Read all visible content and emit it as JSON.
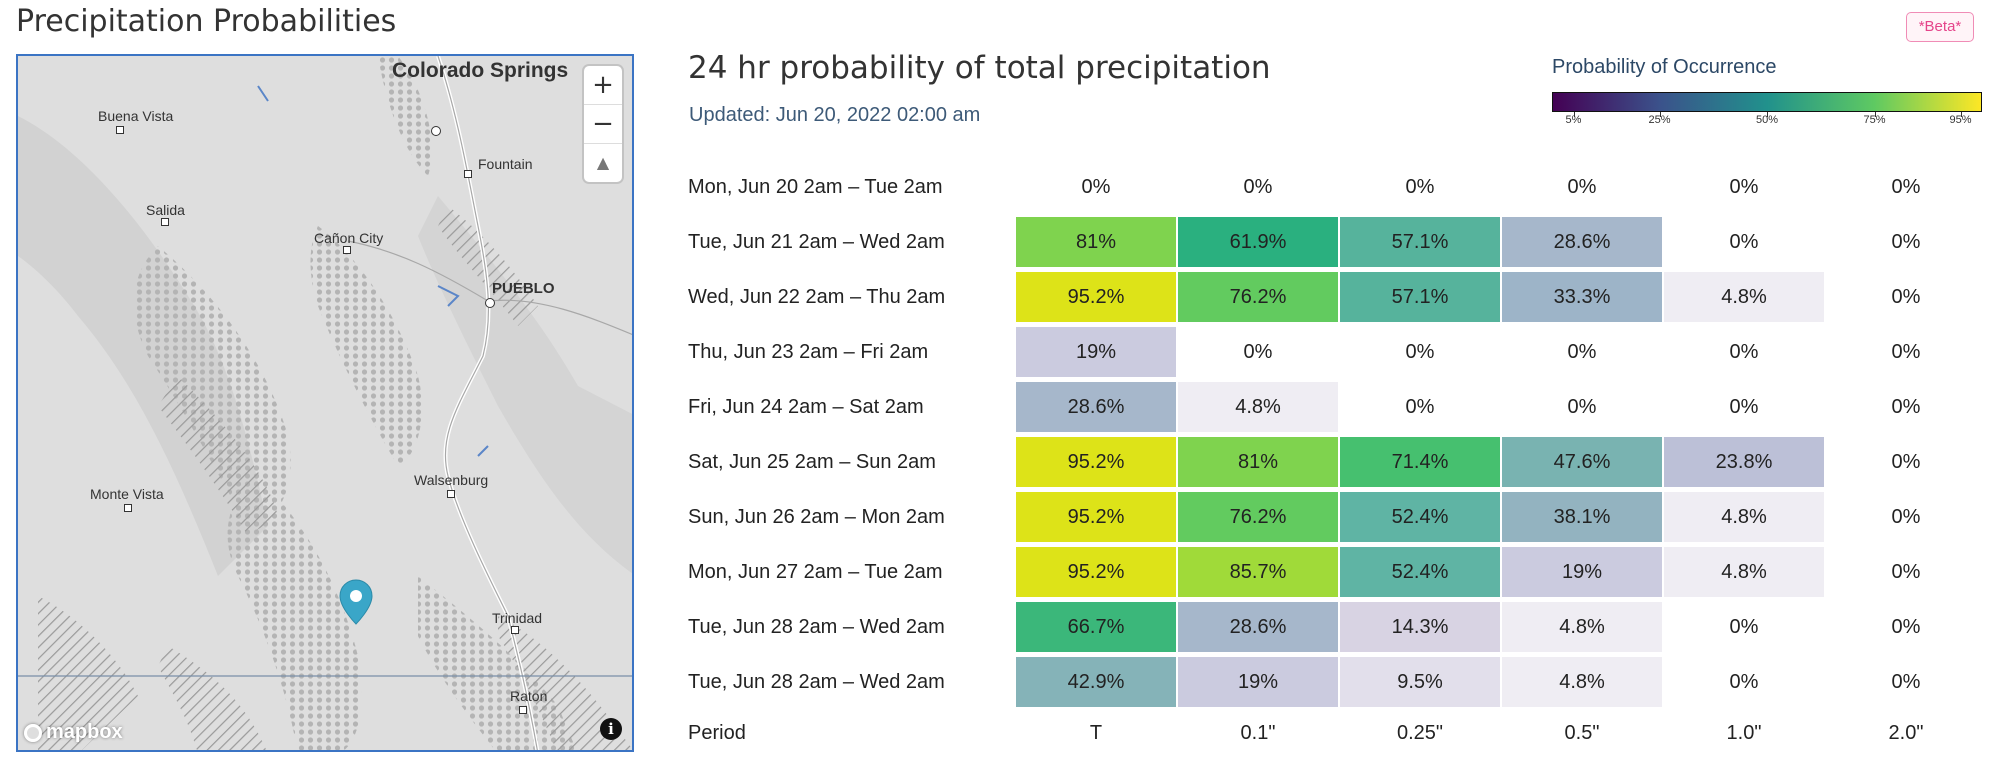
{
  "header": {
    "title": "Precipitation Probabilities",
    "badge": "*Beta*"
  },
  "map": {
    "labels": {
      "colorado_springs": "Colorado Springs",
      "buena_vista": "Buena Vista",
      "fountain": "Fountain",
      "salida": "Salida",
      "canon_city": "Cañon City",
      "pueblo": "PUEBLO",
      "monte_vista": "Monte Vista",
      "walsenburg": "Walsenburg",
      "trinidad": "Trinidad",
      "raton": "Raton"
    },
    "zoom_in": "+",
    "zoom_out": "−",
    "compass": "▲",
    "attribution": "mapbox",
    "info": "i",
    "pin_icon": "map-pin-icon",
    "pin_color": "#3aa6c8"
  },
  "panel": {
    "title": "24 hr probability of total precipitation",
    "updated": "Updated: Jun 20, 2022 02:00 am"
  },
  "legend": {
    "title": "Probability of Occurrence",
    "ticks": [
      "5%",
      "25%",
      "50%",
      "75%",
      "95%"
    ]
  },
  "table": {
    "columns": [
      "Period",
      "T",
      "0.1\"",
      "0.25\"",
      "0.5\"",
      "1.0\"",
      "2.0\""
    ],
    "rows": [
      {
        "period": "Mon, Jun 20 2am – Tue 2am",
        "values": [
          "0%",
          "0%",
          "0%",
          "0%",
          "0%",
          "0%"
        ],
        "colors": [
          "",
          "",
          "",
          "",
          "",
          ""
        ]
      },
      {
        "period": "Tue, Jun 21 2am – Wed 2am",
        "values": [
          "81%",
          "61.9%",
          "57.1%",
          "28.6%",
          "0%",
          "0%"
        ],
        "colors": [
          "#7fd34e",
          "#2ab07f",
          "#56b39c",
          "#a6b7cb",
          "",
          ""
        ]
      },
      {
        "period": "Wed, Jun 22 2am – Thu 2am",
        "values": [
          "95.2%",
          "76.2%",
          "57.1%",
          "33.3%",
          "4.8%",
          "0%"
        ],
        "colors": [
          "#dde318",
          "#62cb5f",
          "#56b39c",
          "#9db4c8",
          "#efedf3",
          ""
        ]
      },
      {
        "period": "Thu, Jun 23 2am – Fri 2am",
        "values": [
          "19%",
          "0%",
          "0%",
          "0%",
          "0%",
          "0%"
        ],
        "colors": [
          "#cbcbdf",
          "",
          "",
          "",
          "",
          ""
        ]
      },
      {
        "period": "Fri, Jun 24 2am – Sat 2am",
        "values": [
          "28.6%",
          "4.8%",
          "0%",
          "0%",
          "0%",
          "0%"
        ],
        "colors": [
          "#a6b7cb",
          "#efedf3",
          "",
          "",
          "",
          ""
        ]
      },
      {
        "period": "Sat, Jun 25 2am – Sun 2am",
        "values": [
          "95.2%",
          "81%",
          "71.4%",
          "47.6%",
          "23.8%",
          "0%"
        ],
        "colors": [
          "#dde318",
          "#7fd34e",
          "#46c06f",
          "#79b3b1",
          "#bcc0d7",
          ""
        ]
      },
      {
        "period": "Sun, Jun 26 2am – Mon 2am",
        "values": [
          "95.2%",
          "76.2%",
          "52.4%",
          "38.1%",
          "4.8%",
          "0%"
        ],
        "colors": [
          "#dde318",
          "#62cb5f",
          "#5fb4a4",
          "#93b3c0",
          "#efedf3",
          ""
        ]
      },
      {
        "period": "Mon, Jun 27 2am – Tue 2am",
        "values": [
          "95.2%",
          "85.7%",
          "52.4%",
          "19%",
          "4.8%",
          "0%"
        ],
        "colors": [
          "#dde318",
          "#a0da39",
          "#5fb4a4",
          "#cbcbdf",
          "#efedf3",
          ""
        ]
      },
      {
        "period": "Tue, Jun 28 2am – Wed 2am",
        "values": [
          "66.7%",
          "28.6%",
          "14.3%",
          "4.8%",
          "0%",
          "0%"
        ],
        "colors": [
          "#3bb77a",
          "#a6b7cb",
          "#d8d3e3",
          "#efedf3",
          "",
          ""
        ]
      },
      {
        "period": "Tue, Jun 28 2am – Wed 2am",
        "values": [
          "42.9%",
          "19%",
          "9.5%",
          "4.8%",
          "0%",
          "0%"
        ],
        "colors": [
          "#85b3b8",
          "#cbcbdf",
          "#e2dfeb",
          "#efedf3",
          "",
          ""
        ]
      }
    ]
  }
}
